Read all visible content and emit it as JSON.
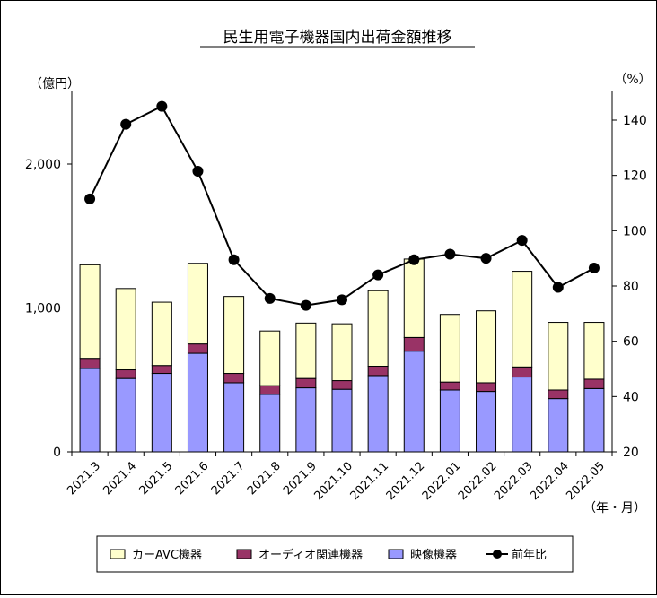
{
  "chart_data": {
    "type": "bar",
    "stacked": true,
    "title": "民生用電子機器国内出荷金額推移",
    "y_left_label": "（億円）",
    "y_right_label": "（%）",
    "x_unit_label": "（年・月）",
    "categories": [
      "2021.3",
      "2021.4",
      "2021.5",
      "2021.6",
      "2021.7",
      "2021.8",
      "2021.9",
      "2021.10",
      "2021.11",
      "2021.12",
      "2022.01",
      "2022.02",
      "2022.03",
      "2022.04",
      "2022.05"
    ],
    "y_left": {
      "min": 0,
      "max": 2000,
      "ticks": [
        0,
        1000,
        2000
      ],
      "tick_labels": [
        "0",
        "1,000",
        "2,000"
      ]
    },
    "y_right": {
      "min": 20,
      "max": 140,
      "ticks": [
        20,
        40,
        60,
        80,
        100,
        120,
        140
      ],
      "tick_labels": [
        "20",
        "40",
        "60",
        "80",
        "100",
        "120",
        "140"
      ]
    },
    "series": [
      {
        "name": "映像機器",
        "type": "bar",
        "axis": "left",
        "color": "#9999ff",
        "values": [
          580,
          510,
          545,
          685,
          480,
          400,
          445,
          435,
          530,
          700,
          430,
          420,
          520,
          370,
          440
        ]
      },
      {
        "name": "オーディオ関連機器",
        "type": "bar",
        "axis": "left",
        "color": "#993366",
        "values": [
          70,
          60,
          55,
          65,
          65,
          60,
          65,
          60,
          65,
          95,
          55,
          60,
          70,
          60,
          65
        ]
      },
      {
        "name": "カーAVC機器",
        "type": "bar",
        "axis": "left",
        "color": "#ffffcc",
        "values": [
          650,
          565,
          440,
          560,
          535,
          380,
          385,
          395,
          525,
          545,
          470,
          500,
          665,
          470,
          395
        ]
      },
      {
        "name": "前年比",
        "type": "line",
        "axis": "right",
        "color": "#000000",
        "values": [
          111.5,
          138.5,
          145,
          121.5,
          89.5,
          75.5,
          73,
          75,
          84,
          89.5,
          91.5,
          90,
          96.5,
          79.5,
          86.5
        ]
      }
    ],
    "legend": {
      "position": "bottom",
      "items": [
        {
          "name": "カーAVC機器",
          "symbol": "box",
          "color": "#ffffcc"
        },
        {
          "name": "オーディオ関連機器",
          "symbol": "box",
          "color": "#993366"
        },
        {
          "name": "映像機器",
          "symbol": "box",
          "color": "#9999ff"
        },
        {
          "name": "前年比",
          "symbol": "line-marker",
          "color": "#000000"
        }
      ]
    },
    "grid": false
  }
}
